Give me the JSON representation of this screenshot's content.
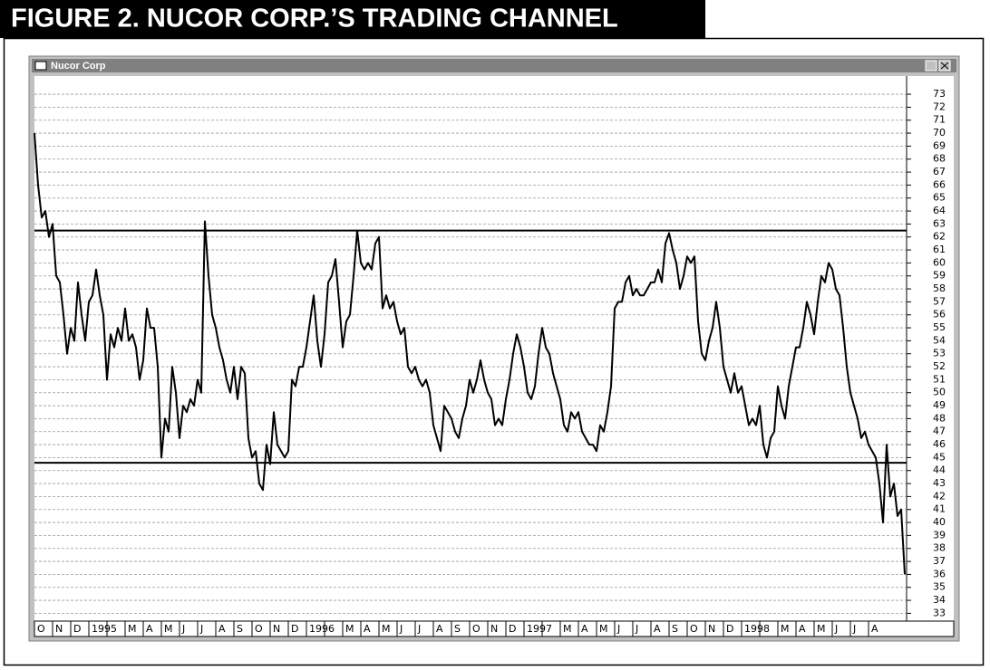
{
  "chart_data": {
    "type": "line",
    "title": "FIGURE 2. NUCOR CORP.’S TRADING CHANNEL",
    "window_title": "Nucor Corp",
    "x": [
      0,
      0.2,
      0.4,
      0.6,
      0.8,
      1,
      1.2,
      1.4,
      1.6,
      1.8,
      2,
      2.2,
      2.4,
      2.6,
      2.8,
      3,
      3.2,
      3.4,
      3.6,
      3.8,
      4,
      4.2,
      4.4,
      4.6,
      4.8,
      5,
      5.2,
      5.4,
      5.6,
      5.8,
      6,
      6.2,
      6.4,
      6.6,
      6.8,
      7,
      7.2,
      7.4,
      7.6,
      7.8,
      8,
      8.2,
      8.4,
      8.6,
      8.8,
      9,
      9.2,
      9.4,
      9.6,
      9.8,
      10,
      10.2,
      10.4,
      10.6,
      10.8,
      11,
      11.2,
      11.4,
      11.6,
      11.8,
      12,
      12.2,
      12.4,
      12.6,
      12.8,
      13,
      13.2,
      13.4,
      13.6,
      13.8,
      14,
      14.2,
      14.4,
      14.6,
      14.8,
      15,
      15.2,
      15.4,
      15.6,
      15.8,
      16,
      16.2,
      16.4,
      16.6,
      16.8,
      17,
      17.2,
      17.4,
      17.6,
      17.8,
      18,
      18.2,
      18.4,
      18.6,
      18.8,
      19,
      19.2,
      19.4,
      19.6,
      19.8,
      20,
      20.2,
      20.4,
      20.6,
      20.8,
      21,
      21.2,
      21.4,
      21.6,
      21.8,
      22,
      22.2,
      22.4,
      22.6,
      22.8,
      23,
      23.2,
      23.4,
      23.6,
      23.8,
      24,
      24.2,
      24.4,
      24.6,
      24.8,
      25,
      25.2,
      25.4,
      25.6,
      25.8,
      26,
      26.2,
      26.4,
      26.6,
      26.8,
      27,
      27.2,
      27.4,
      27.6,
      27.8,
      28,
      28.2,
      28.4,
      28.6,
      28.8,
      29,
      29.2,
      29.4,
      29.6,
      29.8,
      30,
      30.2,
      30.4,
      30.6,
      30.8,
      31,
      31.2,
      31.4,
      31.6,
      31.8,
      32,
      32.2,
      32.4,
      32.6,
      32.8,
      33,
      33.2,
      33.4,
      33.6,
      33.8,
      34,
      34.2,
      34.4,
      34.6,
      34.8,
      35,
      35.2,
      35.4,
      35.6,
      35.8,
      36,
      36.2,
      36.4,
      36.6,
      36.8,
      37,
      37.2,
      37.4,
      37.6,
      37.8,
      38,
      38.2,
      38.4,
      38.6,
      38.8,
      39,
      39.2,
      39.4,
      39.6,
      39.8,
      40,
      40.2,
      40.4,
      40.6,
      40.8,
      41,
      41.2,
      41.4,
      41.6,
      41.8,
      42,
      42.2,
      42.4,
      42.6,
      42.8,
      43,
      43.2,
      43.4,
      43.6,
      43.8,
      44,
      44.2,
      44.4,
      44.6,
      44.8,
      45,
      45.2,
      45.4,
      45.6,
      45.8,
      46,
      46.2,
      46.4,
      46.6,
      46.8,
      47,
      47.2,
      47.4,
      47.6,
      47.8,
      48
    ],
    "series": [
      {
        "color": "#000000",
        "values": [
          70,
          66,
          63.5,
          64,
          62,
          63,
          59,
          58.5,
          56,
          53,
          55,
          54,
          58.5,
          56,
          54,
          57,
          57.5,
          59.5,
          57.5,
          56,
          51,
          54.5,
          53.5,
          55,
          54,
          56.5,
          54,
          54.5,
          53.5,
          51,
          52.5,
          56.5,
          55,
          55,
          52,
          45,
          48,
          47,
          52,
          50,
          46.5,
          49,
          48.5,
          49.5,
          49,
          51,
          50,
          63.2,
          59,
          56,
          55,
          53.5,
          52.5,
          51,
          50,
          52,
          49.5,
          52,
          51.5,
          46.5,
          45,
          45.5,
          43,
          42.5,
          46,
          44.5,
          48.5,
          46,
          45.5,
          45,
          45.5,
          51,
          50.5,
          52,
          52,
          53.5,
          55.5,
          57.5,
          54,
          52,
          54.5,
          58.5,
          59,
          60.3,
          57,
          53.5,
          55.5,
          56,
          59,
          62.5,
          60,
          59.5,
          60,
          59.5,
          61.5,
          62,
          56.5,
          57.5,
          56.5,
          57,
          55.5,
          54.5,
          55,
          52,
          51.5,
          52,
          51,
          50.5,
          51,
          50,
          47.5,
          46.5,
          45.5,
          49,
          48.5,
          48,
          47,
          46.5,
          48,
          49,
          51,
          50,
          51,
          52.5,
          51,
          50,
          49.5,
          47.5,
          48,
          47.5,
          49.5,
          51,
          53,
          54.5,
          53.5,
          52,
          50,
          49.5,
          50.5,
          53,
          55,
          53.5,
          53,
          51.5,
          50.5,
          49.5,
          47.5,
          47,
          48.5,
          48,
          48.5,
          47,
          46.5,
          46,
          46,
          45.5,
          47.5,
          47,
          48.5,
          50.5,
          56.5,
          57,
          57,
          58.5,
          59,
          57.5,
          58,
          57.5,
          57.5,
          58,
          58.5,
          58.5,
          59.5,
          58.5,
          61.5,
          62.3,
          61,
          60,
          58,
          59,
          60.5,
          60,
          60.5,
          55.5,
          53,
          52.5,
          54,
          55,
          57,
          55,
          52,
          51,
          50,
          51.5,
          50,
          50.5,
          49,
          47.5,
          48,
          47.5,
          49,
          46,
          45,
          46.5,
          47,
          50.5,
          49,
          48,
          50.5,
          52,
          53.5,
          53.5,
          55,
          57,
          56,
          54.5,
          57,
          59,
          58.5,
          60,
          59.5,
          58,
          57.5,
          55,
          52,
          50,
          49,
          48,
          46.5,
          47,
          46,
          45.5,
          45,
          43,
          40,
          46,
          42,
          43,
          40.5,
          41,
          36
        ]
      }
    ],
    "channel_lines": [
      62.5,
      44.6
    ],
    "xlim": [
      0,
      48.1
    ],
    "xticks": [
      {
        "value": 0,
        "label": "O"
      },
      {
        "value": 1,
        "label": "N"
      },
      {
        "value": 2,
        "label": "D"
      },
      {
        "value": 3,
        "label": "1995"
      },
      {
        "value": 4,
        "label": null
      },
      {
        "value": 5,
        "label": "M"
      },
      {
        "value": 6,
        "label": "A"
      },
      {
        "value": 7,
        "label": "M"
      },
      {
        "value": 8,
        "label": "J"
      },
      {
        "value": 9,
        "label": "J"
      },
      {
        "value": 10,
        "label": "A"
      },
      {
        "value": 11,
        "label": "S"
      },
      {
        "value": 12,
        "label": "O"
      },
      {
        "value": 13,
        "label": "N"
      },
      {
        "value": 14,
        "label": "D"
      },
      {
        "value": 15,
        "label": "1996"
      },
      {
        "value": 16,
        "label": null
      },
      {
        "value": 17,
        "label": "M"
      },
      {
        "value": 18,
        "label": "A"
      },
      {
        "value": 19,
        "label": "M"
      },
      {
        "value": 20,
        "label": "J"
      },
      {
        "value": 21,
        "label": "J"
      },
      {
        "value": 22,
        "label": "A"
      },
      {
        "value": 23,
        "label": "S"
      },
      {
        "value": 24,
        "label": "O"
      },
      {
        "value": 25,
        "label": "N"
      },
      {
        "value": 26,
        "label": "D"
      },
      {
        "value": 27,
        "label": "1997"
      },
      {
        "value": 28,
        "label": null
      },
      {
        "value": 29,
        "label": "M"
      },
      {
        "value": 30,
        "label": "A"
      },
      {
        "value": 31,
        "label": "M"
      },
      {
        "value": 32,
        "label": "J"
      },
      {
        "value": 33,
        "label": "J"
      },
      {
        "value": 34,
        "label": "A"
      },
      {
        "value": 35,
        "label": "S"
      },
      {
        "value": 36,
        "label": "O"
      },
      {
        "value": 37,
        "label": "N"
      },
      {
        "value": 38,
        "label": "D"
      },
      {
        "value": 39,
        "label": "1998"
      },
      {
        "value": 40,
        "label": null
      },
      {
        "value": 41,
        "label": "M"
      },
      {
        "value": 42,
        "label": "A"
      },
      {
        "value": 43,
        "label": "M"
      },
      {
        "value": 44,
        "label": "J"
      },
      {
        "value": 45,
        "label": "J"
      },
      {
        "value": 46,
        "label": "A"
      }
    ],
    "ylim": [
      32.4,
      74.4
    ],
    "yticks": [
      33,
      34,
      35,
      36,
      37,
      38,
      39,
      40,
      41,
      42,
      43,
      44,
      45,
      46,
      47,
      48,
      49,
      50,
      51,
      52,
      53,
      54,
      55,
      56,
      57,
      58,
      59,
      60,
      61,
      62,
      63,
      64,
      65,
      66,
      67,
      68,
      69,
      70,
      71,
      72,
      73
    ],
    "grid": true
  }
}
